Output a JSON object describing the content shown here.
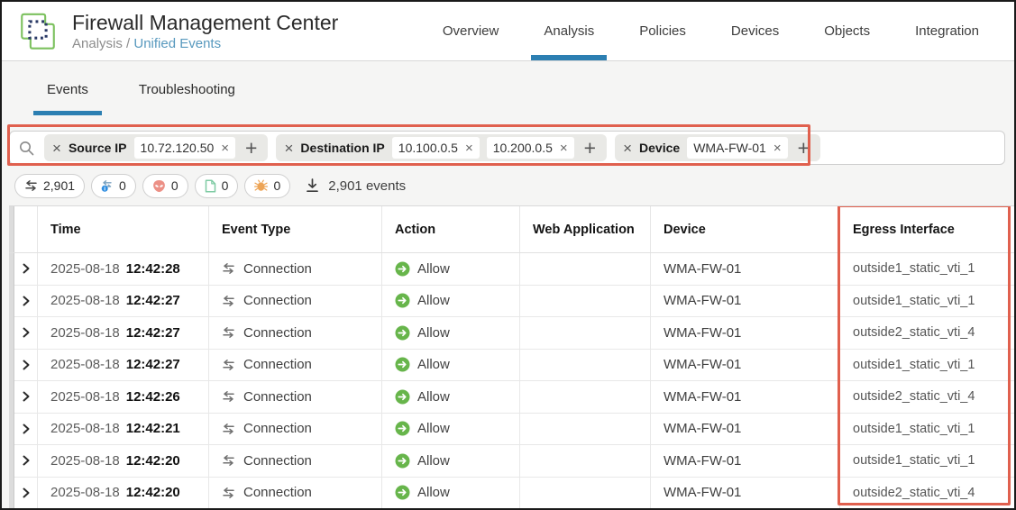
{
  "colors": {
    "annotation_red": "#E0604E",
    "active_tab_blue": "#2C7FB2",
    "breadcrumb_link_blue": "#5899BE",
    "allow_green": "#67B54B",
    "intrusion_salmon": "#EC9086",
    "file_green": "#7FCBA4",
    "malware_orange": "#EDA455",
    "info_blue": "#2E8DE0"
  },
  "header": {
    "title": "Firewall Management Center",
    "breadcrumb": {
      "section": "Analysis",
      "separator": "/",
      "page": "Unified Events"
    },
    "nav_tabs": [
      {
        "label": "Overview",
        "active": false
      },
      {
        "label": "Analysis",
        "active": true
      },
      {
        "label": "Policies",
        "active": false
      },
      {
        "label": "Devices",
        "active": false
      },
      {
        "label": "Objects",
        "active": false
      },
      {
        "label": "Integration",
        "active": false
      }
    ]
  },
  "subnav": {
    "tabs": [
      {
        "label": "Events",
        "active": true
      },
      {
        "label": "Troubleshooting",
        "active": false
      }
    ]
  },
  "filter_bar": {
    "groups": [
      {
        "label": "Source IP",
        "values": [
          "10.72.120.50"
        ]
      },
      {
        "label": "Destination IP",
        "values": [
          "10.100.0.5",
          "10.200.0.5"
        ]
      },
      {
        "label": "Device",
        "values": [
          "WMA-FW-01"
        ]
      }
    ]
  },
  "stats_bar": {
    "counters": [
      {
        "icon": "connection-arrows-icon",
        "count": "2,901"
      },
      {
        "icon": "security-connection-icon",
        "count": "0"
      },
      {
        "icon": "intrusion-alien-icon",
        "count": "0"
      },
      {
        "icon": "file-icon",
        "count": "0"
      },
      {
        "icon": "malware-bug-icon",
        "count": "0"
      }
    ],
    "events_total": "2,901 events"
  },
  "table": {
    "columns": [
      "Time",
      "Event Type",
      "Action",
      "Web Application",
      "Device",
      "Egress Interface"
    ],
    "rows": [
      {
        "date": "2025-08-18",
        "time": "12:42:28",
        "event_type": "Connection",
        "action": "Allow",
        "web_application": "",
        "device": "WMA-FW-01",
        "egress_interface": "outside1_static_vti_1"
      },
      {
        "date": "2025-08-18",
        "time": "12:42:27",
        "event_type": "Connection",
        "action": "Allow",
        "web_application": "",
        "device": "WMA-FW-01",
        "egress_interface": "outside1_static_vti_1"
      },
      {
        "date": "2025-08-18",
        "time": "12:42:27",
        "event_type": "Connection",
        "action": "Allow",
        "web_application": "",
        "device": "WMA-FW-01",
        "egress_interface": "outside2_static_vti_4"
      },
      {
        "date": "2025-08-18",
        "time": "12:42:27",
        "event_type": "Connection",
        "action": "Allow",
        "web_application": "",
        "device": "WMA-FW-01",
        "egress_interface": "outside1_static_vti_1"
      },
      {
        "date": "2025-08-18",
        "time": "12:42:26",
        "event_type": "Connection",
        "action": "Allow",
        "web_application": "",
        "device": "WMA-FW-01",
        "egress_interface": "outside2_static_vti_4"
      },
      {
        "date": "2025-08-18",
        "time": "12:42:21",
        "event_type": "Connection",
        "action": "Allow",
        "web_application": "",
        "device": "WMA-FW-01",
        "egress_interface": "outside1_static_vti_1"
      },
      {
        "date": "2025-08-18",
        "time": "12:42:20",
        "event_type": "Connection",
        "action": "Allow",
        "web_application": "",
        "device": "WMA-FW-01",
        "egress_interface": "outside1_static_vti_1"
      },
      {
        "date": "2025-08-18",
        "time": "12:42:20",
        "event_type": "Connection",
        "action": "Allow",
        "web_application": "",
        "device": "WMA-FW-01",
        "egress_interface": "outside2_static_vti_4"
      }
    ]
  }
}
